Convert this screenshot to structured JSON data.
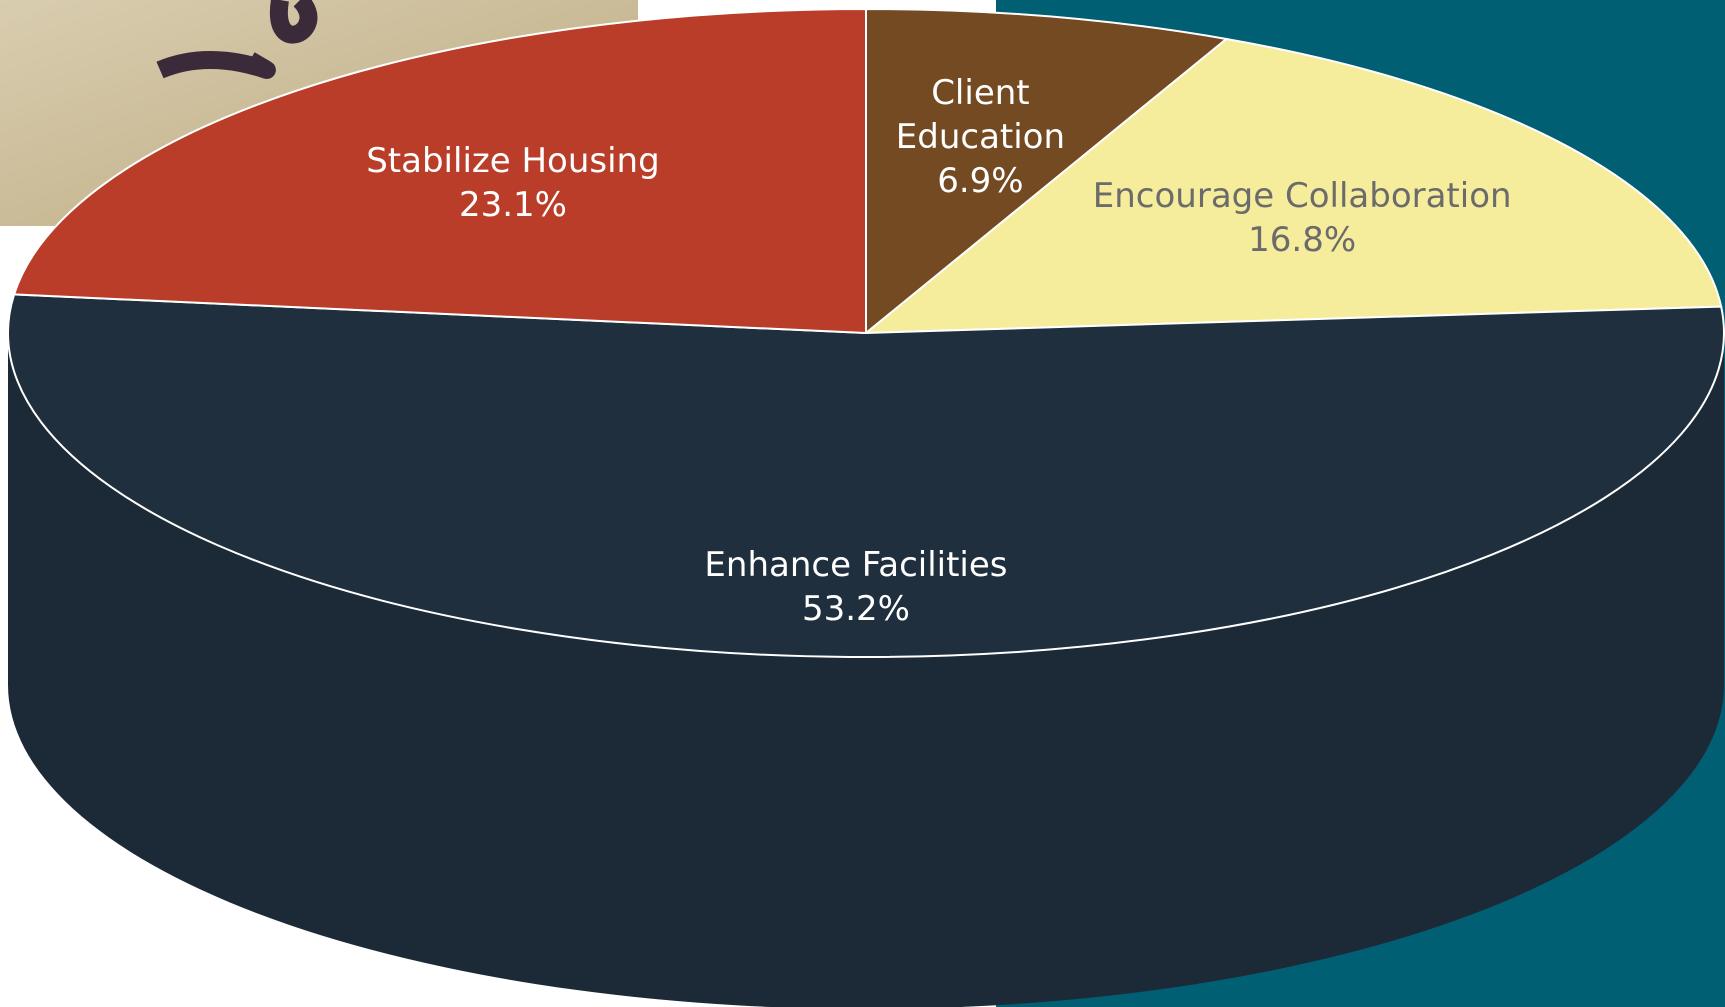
{
  "chart_data": {
    "type": "pie",
    "categories": [
      "Client Education",
      "Encourage Collaboration",
      "Enhance Facilities",
      "Stabilize Housing"
    ],
    "values": [
      6.9,
      16.8,
      53.2,
      23.1
    ],
    "value_labels": [
      "6.9%",
      "16.8%",
      "53.2%",
      "23.1%"
    ],
    "colors": [
      "#734a22",
      "#f5ec9c",
      "#1f2f3d",
      "#b93d28"
    ],
    "label_colors": [
      "#ffffff",
      "#6b6b6b",
      "#ffffff",
      "#ffffff"
    ]
  }
}
